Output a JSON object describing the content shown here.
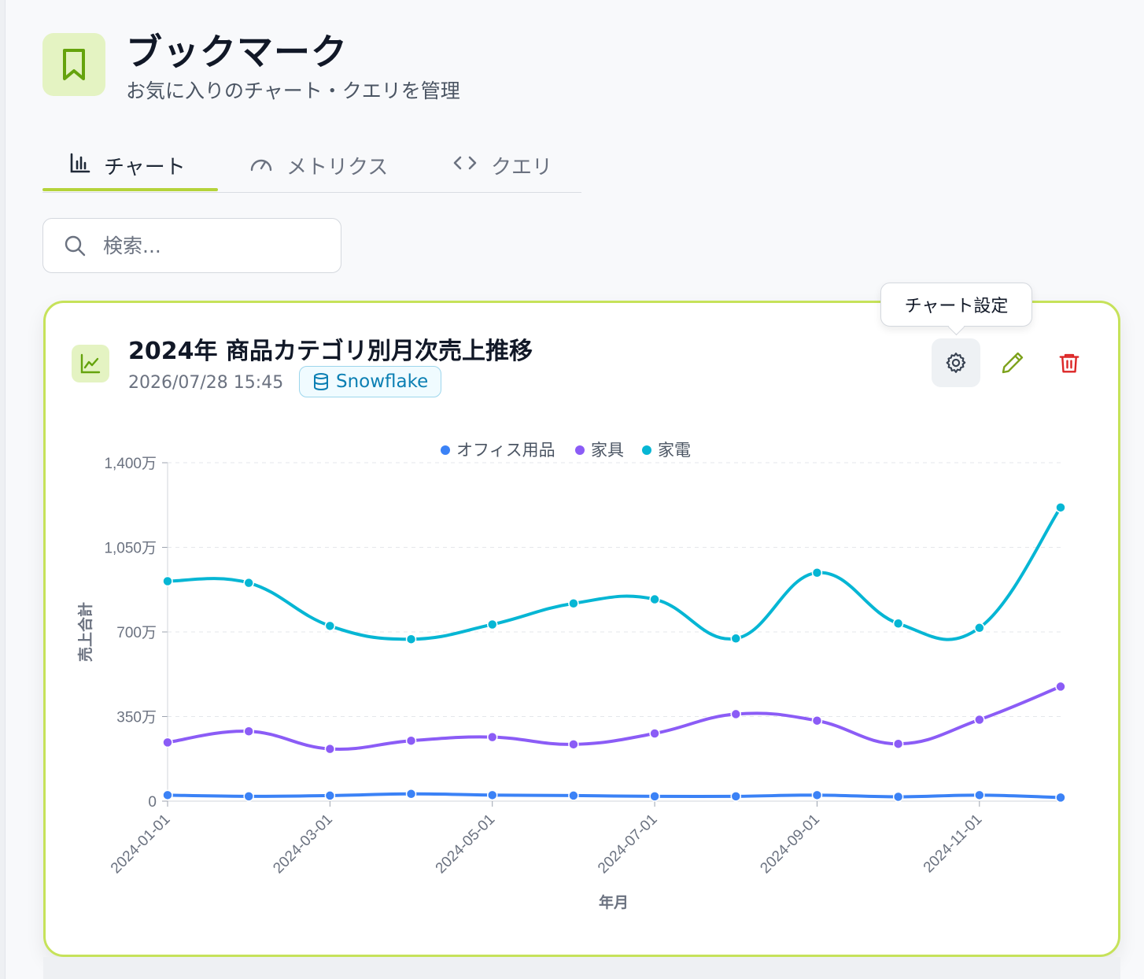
{
  "header": {
    "title": "ブックマーク",
    "subtitle": "お気に入りのチャート・クエリを管理",
    "icon": "bookmark-icon"
  },
  "tabs": [
    {
      "label": "チャート",
      "icon": "bar-chart-icon",
      "active": true
    },
    {
      "label": "メトリクス",
      "icon": "gauge-icon",
      "active": false
    },
    {
      "label": "クエリ",
      "icon": "code-icon",
      "active": false
    }
  ],
  "search": {
    "placeholder": "検索...",
    "value": ""
  },
  "card": {
    "title": "2024年 商品カテゴリ別月次売上推移",
    "timestamp": "2026/07/28 15:45",
    "source": "Snowflake",
    "tooltip": "チャート設定",
    "accent_color": "#c6e25a"
  },
  "chart_data": {
    "type": "line",
    "xlabel": "年月",
    "ylabel": "売上合計",
    "ylim": [
      0,
      14000000
    ],
    "yticks": [
      {
        "value": 0,
        "label": "0"
      },
      {
        "value": 3500000,
        "label": "350万"
      },
      {
        "value": 7000000,
        "label": "700万"
      },
      {
        "value": 10500000,
        "label": "1,050万"
      },
      {
        "value": 14000000,
        "label": "1,400万"
      }
    ],
    "x": [
      "2024-01-01",
      "2024-02-01",
      "2024-03-01",
      "2024-04-01",
      "2024-05-01",
      "2024-06-01",
      "2024-07-01",
      "2024-08-01",
      "2024-09-01",
      "2024-10-01",
      "2024-11-01",
      "2024-12-01"
    ],
    "xtick_labels": [
      "2024-01-01",
      "2024-03-01",
      "2024-05-01",
      "2024-07-01",
      "2024-09-01",
      "2024-11-01"
    ],
    "legend_position": "top",
    "grid": "horizontal-dashed",
    "series": [
      {
        "name": "オフィス用品",
        "color": "#3b82f6",
        "values": [
          250000,
          200000,
          230000,
          300000,
          250000,
          230000,
          200000,
          200000,
          250000,
          180000,
          250000,
          150000
        ]
      },
      {
        "name": "家具",
        "color": "#8b5cf6",
        "values": [
          2430000,
          2890000,
          2160000,
          2500000,
          2650000,
          2350000,
          2800000,
          3600000,
          3330000,
          2370000,
          3370000,
          4740000
        ]
      },
      {
        "name": "家電",
        "color": "#06b6d4",
        "values": [
          9100000,
          9030000,
          7250000,
          6700000,
          7310000,
          8180000,
          8350000,
          6730000,
          9450000,
          7350000,
          7170000,
          12150000
        ]
      }
    ]
  }
}
